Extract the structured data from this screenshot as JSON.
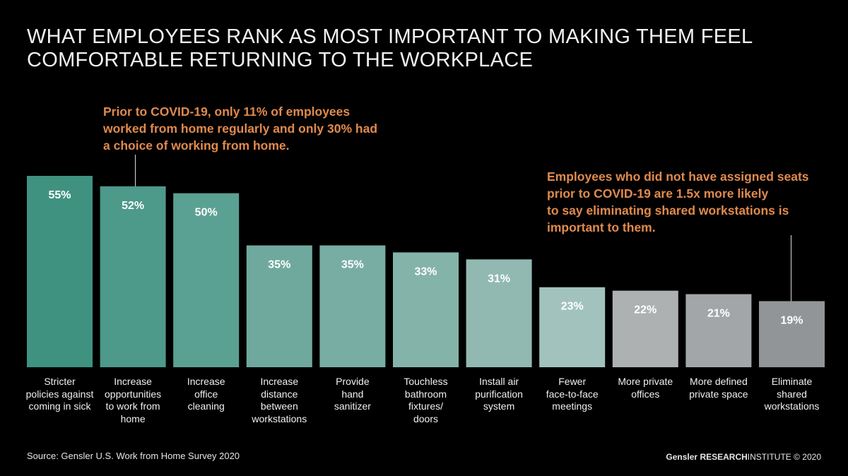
{
  "title_lines": [
    "WHAT EMPLOYEES RANK AS MOST IMPORTANT TO MAKING THEM FEEL",
    "COMFORTABLE RETURNING TO THE WORKPLACE"
  ],
  "annotations": {
    "covid_wfh": [
      "Prior to COVID-19, only 11% of employees",
      "worked from home regularly and only 30% had",
      "a choice of working from home."
    ],
    "assigned_seats": [
      "Employees who did not have assigned seats",
      "prior to COVID-19 are 1.5x more likely",
      "to say eliminating shared workstations is",
      "important to them."
    ]
  },
  "footer": {
    "source": "Source: Gensler U.S. Work from Home Survey 2020",
    "brand": "Gensler",
    "research": "RESEARCH",
    "institute": "INSTITUTE",
    "copyright": "© 2020"
  },
  "chart_data": {
    "type": "bar",
    "title": "WHAT EMPLOYEES RANK AS MOST IMPORTANT TO MAKING THEM FEEL COMFORTABLE RETURNING TO THE WORKPLACE",
    "xlabel": "",
    "ylabel": "",
    "ylim": [
      0,
      55
    ],
    "value_suffix": "%",
    "categories": [
      [
        "Stricter",
        "policies against",
        "coming in sick"
      ],
      [
        "Increase",
        "opportunities",
        "to work from",
        "home"
      ],
      [
        "Increase",
        "office",
        "cleaning"
      ],
      [
        "Increase",
        "distance",
        "between",
        "workstations"
      ],
      [
        "Provide",
        "hand",
        "sanitizer"
      ],
      [
        "Touchless",
        "bathroom",
        "fixtures/",
        "doors"
      ],
      [
        "Install air",
        "purification",
        "system"
      ],
      [
        "Fewer",
        "face-to-face",
        "meetings"
      ],
      [
        "More private",
        "offices"
      ],
      [
        "More defined",
        "private space"
      ],
      [
        "Eliminate",
        "shared",
        "workstations"
      ]
    ],
    "values": [
      55,
      52,
      50,
      35,
      35,
      33,
      31,
      23,
      22,
      21,
      19
    ],
    "value_labels": [
      "55%",
      "52%",
      "50%",
      "35%",
      "35%",
      "33%",
      "31%",
      "23%",
      "22%",
      "21%",
      "19%"
    ],
    "colors": [
      "#3f9280",
      "#4d998a",
      "#5ba193",
      "#6fa99d",
      "#78ada3",
      "#84b3aa",
      "#91b9b1",
      "#a2c2bd",
      "#aeb1b2",
      "#a3a6a8",
      "#929597"
    ]
  }
}
